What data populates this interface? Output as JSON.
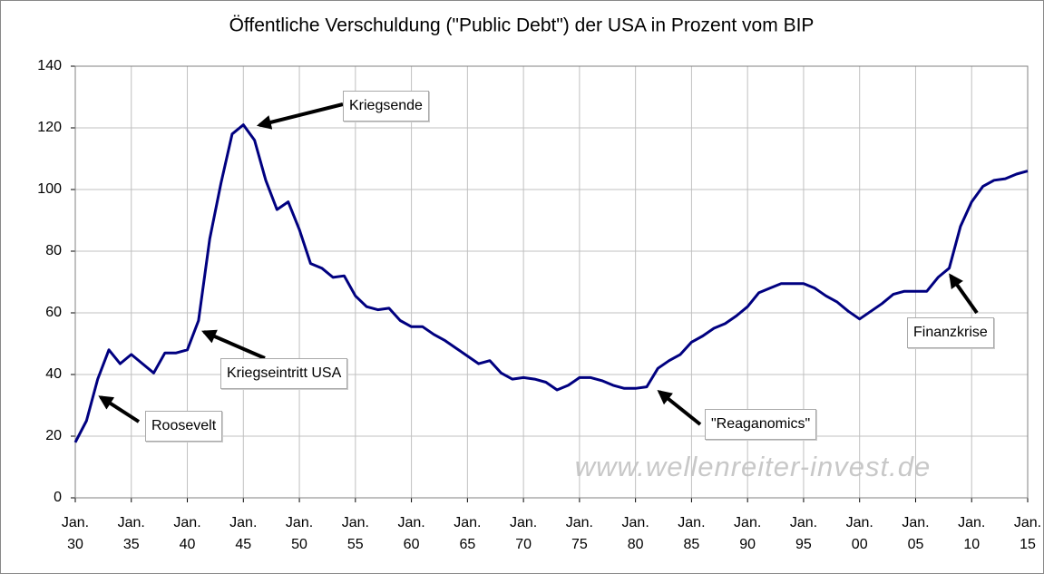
{
  "chart_data": {
    "type": "line",
    "title": "Öffentliche Verschuldung (\"Public Debt\") der USA in Prozent vom BIP",
    "x": [
      1930,
      1931,
      1932,
      1933,
      1934,
      1935,
      1936,
      1937,
      1938,
      1939,
      1940,
      1941,
      1942,
      1943,
      1944,
      1945,
      1946,
      1947,
      1948,
      1949,
      1950,
      1951,
      1952,
      1953,
      1954,
      1955,
      1956,
      1957,
      1958,
      1959,
      1960,
      1961,
      1962,
      1963,
      1964,
      1965,
      1966,
      1967,
      1968,
      1969,
      1970,
      1971,
      1972,
      1973,
      1974,
      1975,
      1976,
      1977,
      1978,
      1979,
      1980,
      1981,
      1982,
      1983,
      1984,
      1985,
      1986,
      1987,
      1988,
      1989,
      1990,
      1991,
      1992,
      1993,
      1994,
      1995,
      1996,
      1997,
      1998,
      1999,
      2000,
      2001,
      2002,
      2003,
      2004,
      2005,
      2006,
      2007,
      2008,
      2009,
      2010,
      2011,
      2012,
      2013,
      2014,
      2015
    ],
    "series": [
      {
        "name": "Public Debt",
        "color": "#000080",
        "values": [
          18,
          25,
          38.5,
          48,
          43.5,
          46.5,
          43.5,
          40.5,
          47,
          47,
          48,
          57.5,
          84,
          102,
          118,
          121,
          116,
          103,
          93.5,
          96,
          87,
          76,
          74.5,
          71.5,
          72,
          65.5,
          62,
          61,
          61.5,
          57.5,
          55.5,
          55.5,
          53,
          51,
          48.5,
          46,
          43.5,
          44.5,
          40.5,
          38.5,
          39,
          38.5,
          37.5,
          35,
          36.5,
          39,
          39,
          38,
          36.5,
          35.5,
          35.5,
          36,
          42,
          44.5,
          46.5,
          50.5,
          52.5,
          55,
          56.5,
          59,
          62,
          66.5,
          68,
          69.5,
          69.5,
          69.5,
          68,
          65.5,
          63.5,
          60.5,
          58,
          60.5,
          63,
          66,
          67,
          67,
          67,
          71.5,
          74.5,
          88,
          96,
          101,
          103,
          103.5,
          105,
          106
        ]
      }
    ],
    "xlim": [
      1930,
      2015
    ],
    "xticks": [
      {
        "value": 1930,
        "label": "Jan. 30"
      },
      {
        "value": 1935,
        "label": "Jan. 35"
      },
      {
        "value": 1940,
        "label": "Jan. 40"
      },
      {
        "value": 1945,
        "label": "Jan. 45"
      },
      {
        "value": 1950,
        "label": "Jan. 50"
      },
      {
        "value": 1955,
        "label": "Jan. 55"
      },
      {
        "value": 1960,
        "label": "Jan. 60"
      },
      {
        "value": 1965,
        "label": "Jan. 65"
      },
      {
        "value": 1970,
        "label": "Jan. 70"
      },
      {
        "value": 1975,
        "label": "Jan. 75"
      },
      {
        "value": 1980,
        "label": "Jan. 80"
      },
      {
        "value": 1985,
        "label": "Jan. 85"
      },
      {
        "value": 1990,
        "label": "Jan. 90"
      },
      {
        "value": 1995,
        "label": "Jan. 95"
      },
      {
        "value": 2000,
        "label": "Jan. 00"
      },
      {
        "value": 2005,
        "label": "Jan. 05"
      },
      {
        "value": 2010,
        "label": "Jan. 10"
      },
      {
        "value": 2015,
        "label": "Jan. 15"
      }
    ],
    "ylim": [
      0,
      140
    ],
    "yticks": [
      0,
      20,
      40,
      60,
      80,
      100,
      120,
      140
    ],
    "grid": true,
    "annotations": [
      "Kriegsende",
      "Roosevelt",
      "Kriegseintritt USA",
      "\"Reaganomics\"",
      "Finanzkrise"
    ],
    "watermark": "www.wellenreiter-invest.de"
  }
}
